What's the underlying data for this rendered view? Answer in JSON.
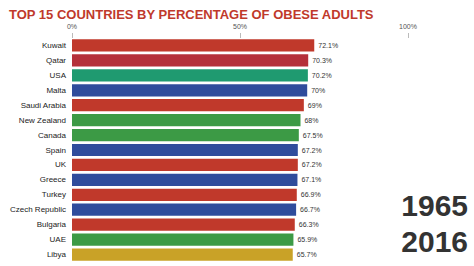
{
  "chart_data": {
    "type": "bar",
    "orientation": "horizontal",
    "title": "TOP 15 COUNTRIES BY PERCENTAGE OF OBESE ADULTS",
    "categories": [
      "Kuwait",
      "Qatar",
      "USA",
      "Malta",
      "Saudi Arabia",
      "New Zealand",
      "Canada",
      "Spain",
      "UK",
      "Greece",
      "Turkey",
      "Czech Republic",
      "Bulgaria",
      "UAE",
      "Libya"
    ],
    "values": [
      72.1,
      70.3,
      70.2,
      70,
      69,
      68,
      67.5,
      67.2,
      67.2,
      67.1,
      66.9,
      66.7,
      66.3,
      65.9,
      65.7
    ],
    "value_labels": [
      "72.1%",
      "70.3%",
      "70.2%",
      "70%",
      "69%",
      "68%",
      "67.5%",
      "67.2%",
      "67.2%",
      "67.1%",
      "66.9%",
      "66.7%",
      "66.3%",
      "65.9%",
      "65.7%"
    ],
    "colors": [
      "#c0392b",
      "#b5303a",
      "#1f9a70",
      "#2f4c9c",
      "#c0392b",
      "#3c9a45",
      "#3c9a45",
      "#2f4c9c",
      "#c0392b",
      "#2f4c9c",
      "#c0392b",
      "#2f4c9c",
      "#c0392b",
      "#3c9a45",
      "#c9a227"
    ],
    "xlim": [
      0,
      100
    ],
    "xticks": [
      {
        "value": 0,
        "label": "0%"
      },
      {
        "value": 50,
        "label": "50%"
      },
      {
        "value": 100,
        "label": "100%"
      }
    ],
    "data_labels": true,
    "grid": false,
    "annotations": [
      "1965",
      "2016"
    ]
  }
}
